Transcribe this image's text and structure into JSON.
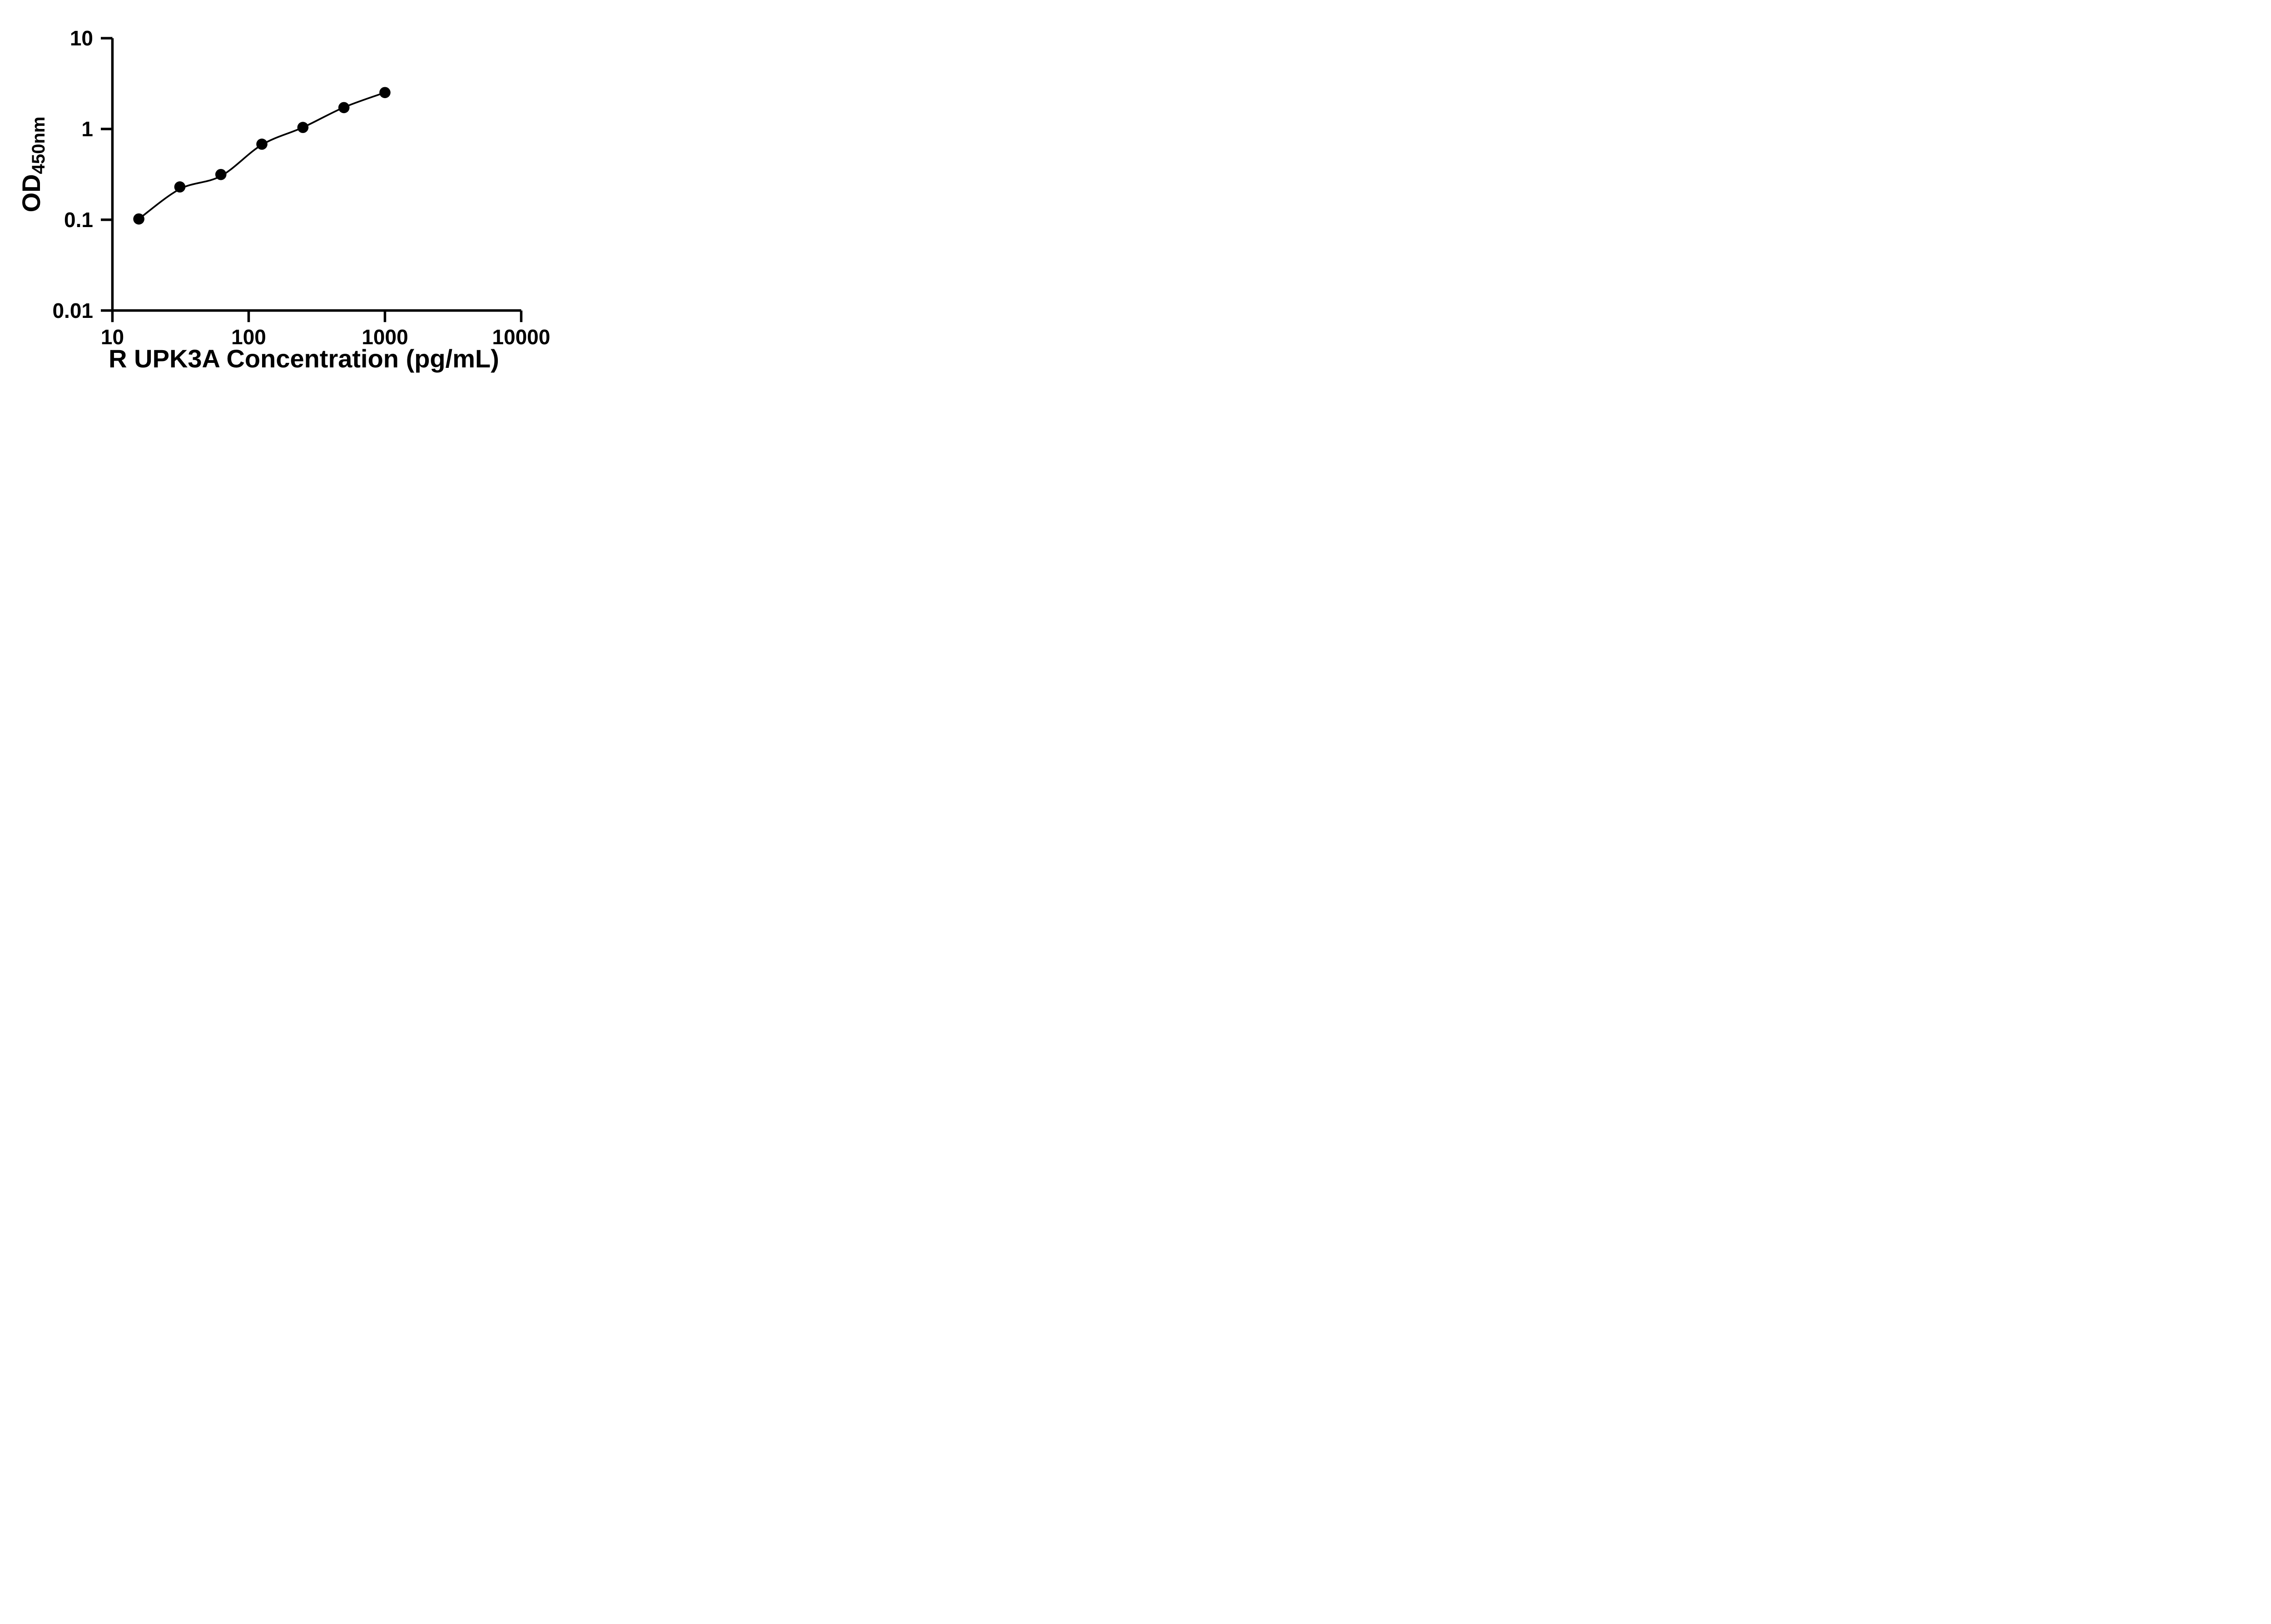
{
  "chart_data": {
    "type": "scatter",
    "title": "",
    "x_title": "R UPK3A Concentration (pg/mL)",
    "y_title_main": "OD",
    "y_title_sub": "450nm",
    "x_scale": "log10",
    "y_scale": "log10",
    "xlim": [
      10,
      10000
    ],
    "ylim": [
      0.01,
      10
    ],
    "x_ticks": [
      10,
      100,
      1000,
      10000
    ],
    "x_tick_labels": [
      "10",
      "100",
      "1000",
      "10000"
    ],
    "y_ticks": [
      10,
      1,
      0.1,
      0.01
    ],
    "y_tick_labels": [
      "10",
      "1",
      "0.1",
      "0.01"
    ],
    "grid": false,
    "legend_position": "none",
    "marker_color": "#000000",
    "line_color": "#000000",
    "axis_color": "#000000",
    "background_color": "#ffffff",
    "series": [
      {
        "name": "standard-curve",
        "marker": "filled-circle",
        "points": [
          {
            "x": 15.625,
            "y": 0.102
          },
          {
            "x": 31.25,
            "y": 0.23
          },
          {
            "x": 62.5,
            "y": 0.315
          },
          {
            "x": 125,
            "y": 0.68
          },
          {
            "x": 250,
            "y": 1.04
          },
          {
            "x": 500,
            "y": 1.72
          },
          {
            "x": 1000,
            "y": 2.52
          }
        ],
        "fit_curve": [
          {
            "x": 15.625,
            "y": 0.102
          },
          {
            "x": 31.25,
            "y": 0.218
          },
          {
            "x": 62.5,
            "y": 0.303
          },
          {
            "x": 125,
            "y": 0.67
          },
          {
            "x": 250,
            "y": 1.04
          },
          {
            "x": 500,
            "y": 1.73
          },
          {
            "x": 1000,
            "y": 2.52
          }
        ]
      }
    ]
  }
}
